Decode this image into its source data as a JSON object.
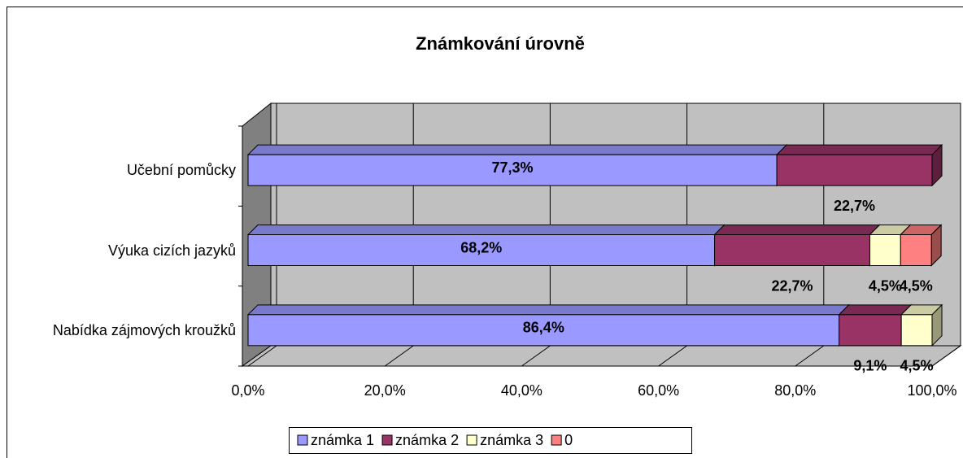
{
  "chart_data": {
    "type": "stacked-bar-3d",
    "title": "Známkování úrovně",
    "categories": [
      "Učební pomůcky",
      "Výuka cizích jazyků",
      "Nabídka zájmových kroužků"
    ],
    "series": [
      {
        "name": "známka 1",
        "color": "#9999ff",
        "values": [
          77.3,
          68.2,
          86.4
        ],
        "value_labels": [
          "77,3%",
          "68,2%",
          "86,4%"
        ]
      },
      {
        "name": "známka 2",
        "color": "#993366",
        "values": [
          22.7,
          22.7,
          9.1
        ],
        "value_labels": [
          "22,7%",
          "22,7%",
          "9,1%"
        ]
      },
      {
        "name": "známka 3",
        "color": "#ffffcc",
        "values": [
          null,
          4.5,
          4.5
        ],
        "value_labels": [
          null,
          "4,5%",
          "4,5%"
        ]
      },
      {
        "name": "0",
        "color": "#ff8080",
        "values": [
          null,
          4.5,
          null
        ],
        "value_labels": [
          null,
          "4,5%",
          null
        ]
      }
    ],
    "xlim": [
      0,
      100
    ],
    "xticks": [
      {
        "value": 0,
        "label": "0,0%"
      },
      {
        "value": 20,
        "label": "20,0%"
      },
      {
        "value": 40,
        "label": "40,0%"
      },
      {
        "value": 60,
        "label": "60,0%"
      },
      {
        "value": 80,
        "label": "80,0%"
      },
      {
        "value": 100,
        "label": "100,0%"
      }
    ],
    "grid": true,
    "legend": "bottom"
  }
}
